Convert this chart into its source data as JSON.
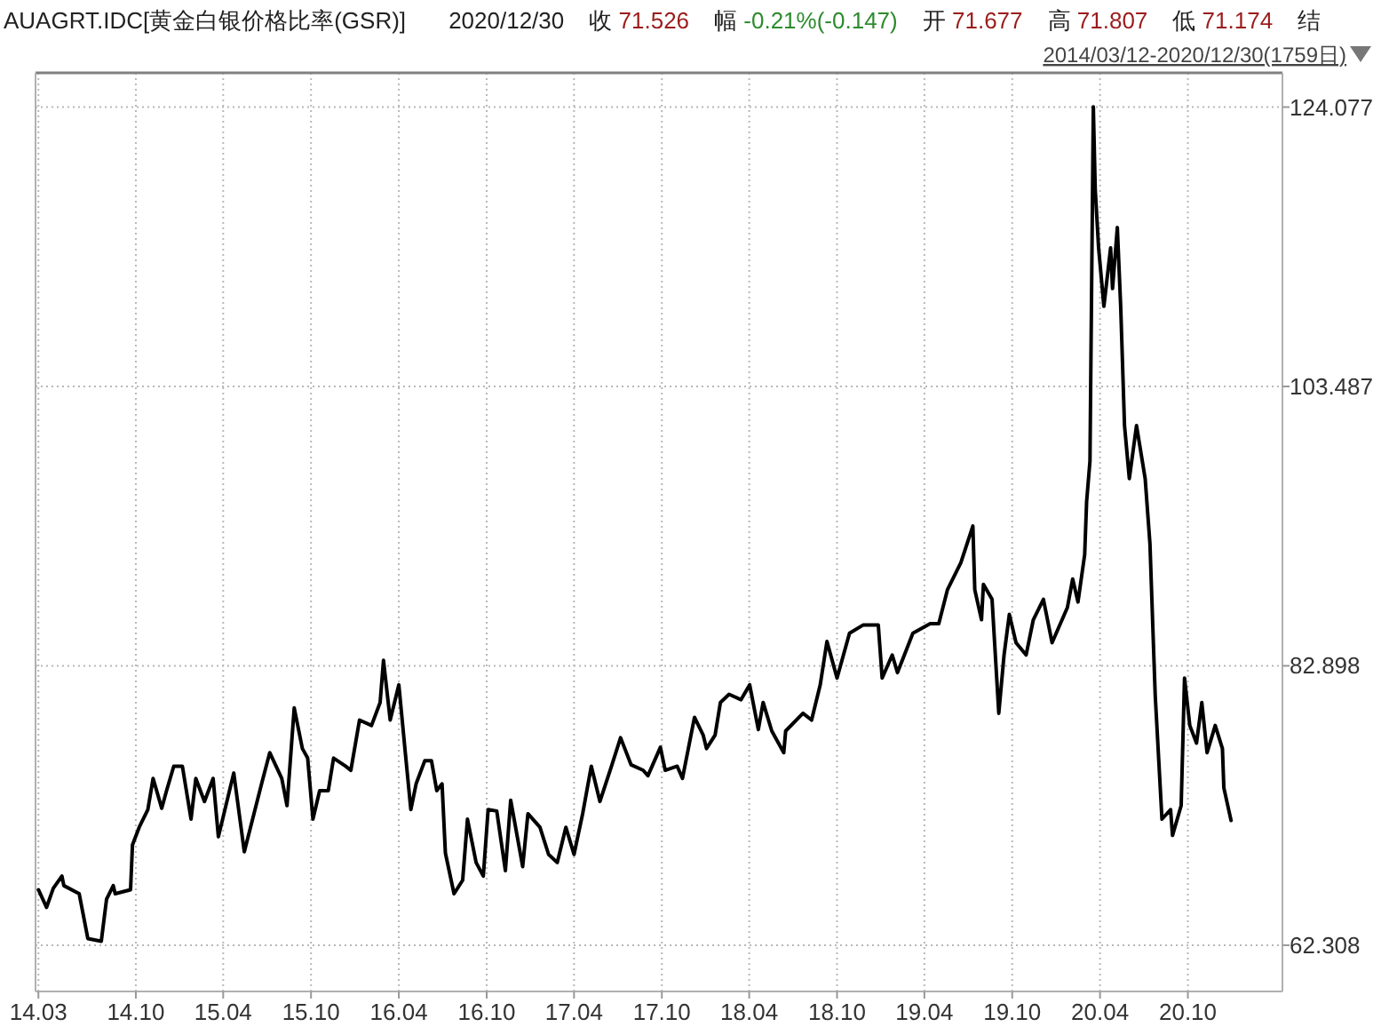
{
  "chart_data": {
    "type": "line",
    "title": "AUAGRT.IDC[黄金白银价格比率(GSR)]",
    "subtitle": "2014/03/12-2020/12/30(1759日)",
    "annotations": [
      "2020/12/30",
      "收 71.526",
      "幅 -0.21%(-0.147)",
      "开 71.677",
      "高 71.807",
      "低 71.174",
      "结"
    ],
    "xlim": [
      "2014-03-06",
      "2021-04-16"
    ],
    "ylim": [
      58.9,
      126.6
    ],
    "xticks": [
      {
        "value": "2014-03-12",
        "label": "14.03"
      },
      {
        "value": "2014-10-01",
        "label": "14.10"
      },
      {
        "value": "2015-04-01",
        "label": "15.04"
      },
      {
        "value": "2015-10-01",
        "label": "15.10"
      },
      {
        "value": "2016-04-01",
        "label": "16.04"
      },
      {
        "value": "2016-10-01",
        "label": "16.10"
      },
      {
        "value": "2017-04-01",
        "label": "17.04"
      },
      {
        "value": "2017-10-01",
        "label": "17.10"
      },
      {
        "value": "2018-04-01",
        "label": "18.04"
      },
      {
        "value": "2018-10-01",
        "label": "18.10"
      },
      {
        "value": "2019-04-01",
        "label": "19.04"
      },
      {
        "value": "2019-10-01",
        "label": "19.10"
      },
      {
        "value": "2020-04-01",
        "label": "20.04"
      },
      {
        "value": "2020-10-01",
        "label": "20.10"
      }
    ],
    "yticks": [
      62.308,
      82.898,
      103.487,
      124.077
    ],
    "grid": true,
    "series": [
      {
        "color": "#000000",
        "x": [
          "2014-03-12",
          "2014-03-29",
          "2014-04-12",
          "2014-04-30",
          "2014-05-04",
          "2014-06-05",
          "2014-06-23",
          "2014-07-21",
          "2014-08-01",
          "2014-08-15",
          "2014-08-19",
          "2014-09-20",
          "2014-09-24",
          "2014-10-08",
          "2014-10-26",
          "2014-11-06",
          "2014-11-24",
          "2014-12-04",
          "2014-12-19",
          "2015-01-06",
          "2015-01-24",
          "2015-02-03",
          "2015-02-21",
          "2015-03-11",
          "2015-03-22",
          "2015-04-23",
          "2015-05-15",
          "2015-06-20",
          "2015-07-07",
          "2015-08-01",
          "2015-08-12",
          "2015-08-27",
          "2015-09-13",
          "2015-09-24",
          "2015-10-05",
          "2015-10-19",
          "2015-11-06",
          "2015-11-17",
          "2015-12-12",
          "2015-12-23",
          "2016-01-10",
          "2016-02-04",
          "2016-02-22",
          "2016-02-29",
          "2016-03-14",
          "2016-04-01",
          "2016-04-15",
          "2016-04-26",
          "2016-05-07",
          "2016-05-25",
          "2016-06-08",
          "2016-06-19",
          "2016-06-30",
          "2016-07-07",
          "2016-07-25",
          "2016-08-12",
          "2016-08-22",
          "2016-09-09",
          "2016-09-24",
          "2016-10-04",
          "2016-10-22",
          "2016-11-09",
          "2016-11-20",
          "2016-12-15",
          "2016-12-26",
          "2017-01-20",
          "2017-02-07",
          "2017-02-25",
          "2017-03-15",
          "2017-04-01",
          "2017-04-19",
          "2017-05-07",
          "2017-05-25",
          "2017-06-19",
          "2017-07-07",
          "2017-07-29",
          "2017-08-23",
          "2017-09-02",
          "2017-09-28",
          "2017-10-08",
          "2017-11-02",
          "2017-11-13",
          "2017-12-08",
          "2017-12-26",
          "2018-01-02",
          "2018-01-20",
          "2018-01-31",
          "2018-02-18",
          "2018-03-15",
          "2018-04-02",
          "2018-04-20",
          "2018-04-30",
          "2018-05-18",
          "2018-06-12",
          "2018-06-16",
          "2018-07-22",
          "2018-08-09",
          "2018-08-27",
          "2018-09-10",
          "2018-10-01",
          "2018-10-27",
          "2018-11-24",
          "2018-12-26",
          "2019-01-03",
          "2019-01-24",
          "2019-02-04",
          "2019-03-08",
          "2019-04-13",
          "2019-05-01",
          "2019-05-19",
          "2019-06-16",
          "2019-07-11",
          "2019-07-15",
          "2019-07-29",
          "2019-08-02",
          "2019-08-20",
          "2019-09-03",
          "2019-09-14",
          "2019-09-25",
          "2019-10-09",
          "2019-10-30",
          "2019-11-14",
          "2019-12-05",
          "2019-12-23",
          "2020-01-24",
          "2020-02-04",
          "2020-02-15",
          "2020-02-29",
          "2020-03-04",
          "2020-03-11",
          "2020-03-18",
          "2020-03-22",
          "2020-03-29",
          "2020-04-09",
          "2020-04-23",
          "2020-04-27",
          "2020-05-07",
          "2020-05-14",
          "2020-05-22",
          "2020-06-01",
          "2020-06-16",
          "2020-07-04",
          "2020-07-14",
          "2020-07-22",
          "2020-07-25",
          "2020-08-08",
          "2020-08-26",
          "2020-08-30",
          "2020-09-17",
          "2020-09-24",
          "2020-10-05",
          "2020-10-19",
          "2020-10-30",
          "2020-11-10",
          "2020-11-27",
          "2020-12-12",
          "2020-12-15",
          "2020-12-30"
        ],
        "values": [
          66.4,
          65.1,
          66.5,
          67.4,
          66.7,
          66.1,
          62.8,
          62.6,
          65.7,
          66.7,
          66.1,
          66.4,
          69.7,
          71.0,
          72.3,
          74.6,
          72.4,
          73.7,
          75.5,
          75.5,
          71.6,
          74.6,
          72.9,
          74.6,
          70.3,
          75.0,
          69.2,
          74.2,
          76.5,
          74.6,
          72.6,
          79.8,
          76.8,
          76.1,
          71.6,
          73.7,
          73.7,
          76.1,
          75.5,
          75.2,
          78.9,
          78.5,
          80.2,
          83.3,
          78.9,
          81.5,
          76.3,
          72.3,
          74.2,
          75.9,
          75.9,
          73.7,
          74.2,
          69.1,
          66.1,
          67.1,
          71.6,
          68.4,
          67.4,
          72.3,
          72.2,
          67.8,
          73.0,
          68.1,
          72.0,
          71.0,
          69.0,
          68.4,
          71.0,
          69.0,
          72.0,
          75.5,
          72.9,
          75.6,
          77.6,
          75.6,
          75.2,
          74.8,
          76.9,
          75.2,
          75.5,
          74.6,
          79.1,
          77.8,
          76.8,
          77.8,
          80.2,
          80.8,
          80.4,
          81.5,
          78.2,
          80.2,
          78.1,
          76.5,
          78.1,
          79.4,
          78.9,
          81.5,
          84.7,
          82.0,
          85.3,
          85.9,
          85.9,
          82.0,
          83.7,
          82.4,
          85.3,
          86.0,
          86.0,
          88.5,
          90.5,
          93.2,
          88.5,
          86.3,
          88.9,
          87.8,
          79.4,
          83.7,
          86.7,
          84.6,
          83.7,
          86.3,
          87.8,
          84.6,
          87.2,
          89.3,
          87.6,
          91.1,
          95.0,
          98.0,
          124.1,
          118.0,
          113.7,
          109.4,
          113.7,
          110.7,
          115.2,
          109.4,
          100.6,
          96.7,
          100.6,
          96.7,
          91.9,
          83.7,
          80.7,
          71.6,
          72.3,
          70.4,
          72.6,
          82.0,
          78.5,
          77.2,
          80.2,
          76.5,
          78.5,
          76.8,
          73.9,
          71.5
        ]
      }
    ]
  }
}
